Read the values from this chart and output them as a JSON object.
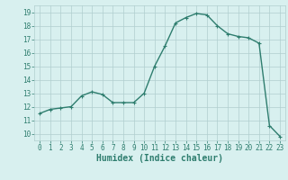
{
  "x": [
    0,
    1,
    2,
    3,
    4,
    5,
    6,
    7,
    8,
    9,
    10,
    11,
    12,
    13,
    14,
    15,
    16,
    17,
    18,
    19,
    20,
    21,
    22,
    23
  ],
  "y": [
    11.5,
    11.8,
    11.9,
    12.0,
    12.8,
    13.1,
    12.9,
    12.3,
    12.3,
    12.3,
    13.0,
    15.0,
    16.5,
    18.2,
    18.6,
    18.9,
    18.8,
    18.0,
    17.4,
    17.2,
    17.1,
    16.7,
    10.6,
    9.8
  ],
  "line_color": "#2e7d6e",
  "marker": "+",
  "marker_size": 3,
  "bg_color": "#d8f0ef",
  "grid_color": "#b0cece",
  "xlabel": "Humidex (Indice chaleur)",
  "xlim": [
    -0.5,
    23.5
  ],
  "ylim": [
    9.5,
    19.5
  ],
  "yticks": [
    10,
    11,
    12,
    13,
    14,
    15,
    16,
    17,
    18,
    19
  ],
  "xticks": [
    0,
    1,
    2,
    3,
    4,
    5,
    6,
    7,
    8,
    9,
    10,
    11,
    12,
    13,
    14,
    15,
    16,
    17,
    18,
    19,
    20,
    21,
    22,
    23
  ],
  "tick_label_fontsize": 5.5,
  "xlabel_fontsize": 7,
  "line_width": 1.0
}
